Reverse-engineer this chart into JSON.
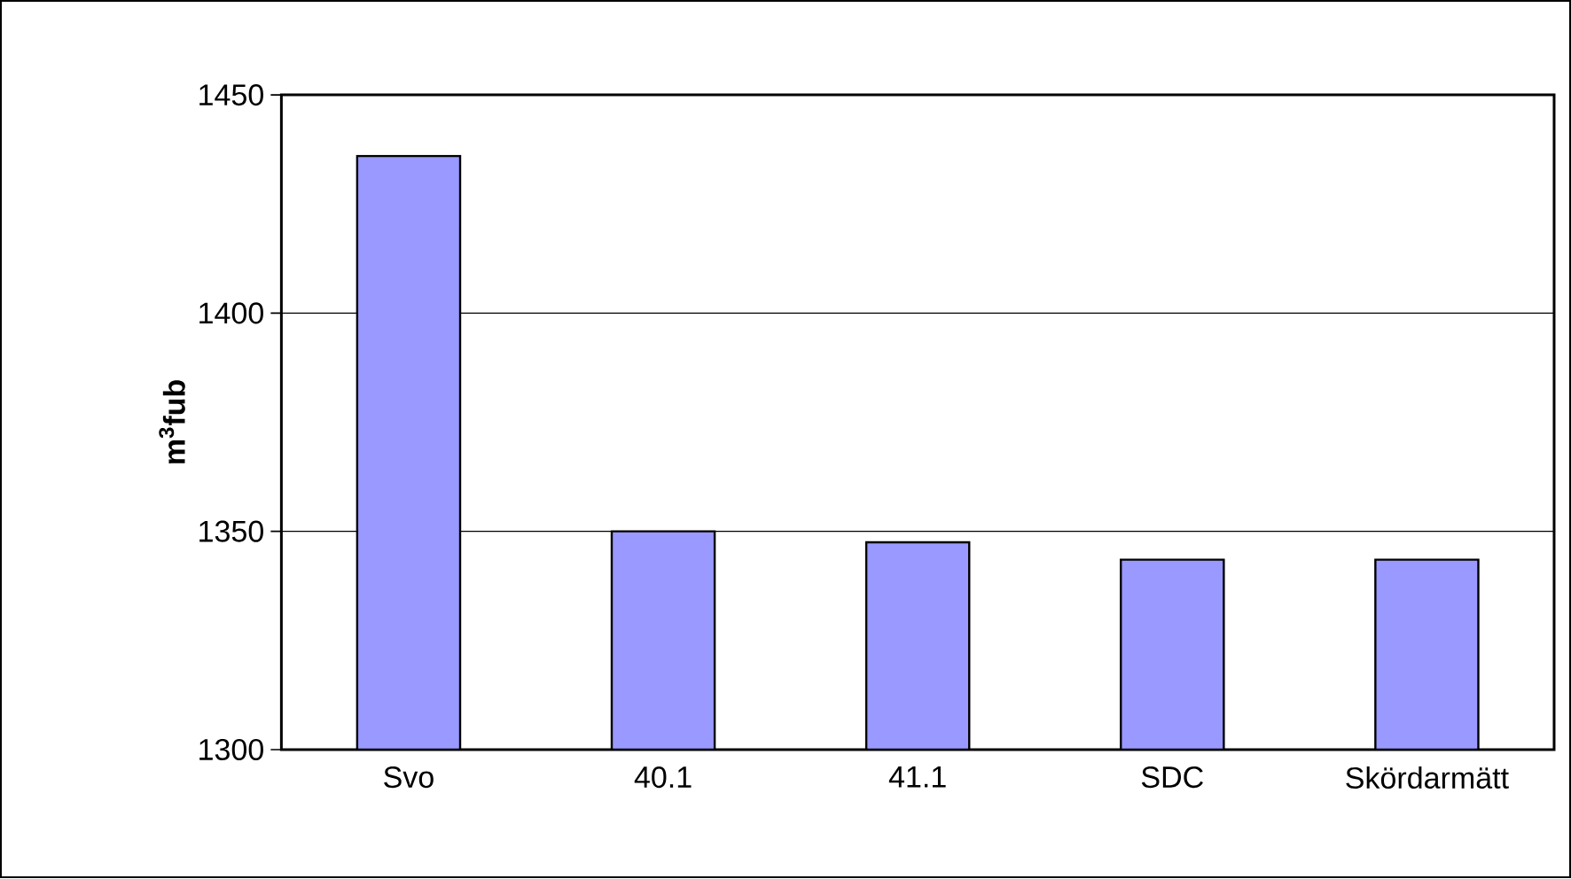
{
  "chart_data": {
    "type": "bar",
    "ylabel": "m$^{3}$fub",
    "categories": [
      "Svo",
      "40.1",
      "41.1",
      "SDC",
      "Skördarmätt"
    ],
    "values": [
      1436,
      1350,
      1347.5,
      1343.5,
      1343.5
    ],
    "color": "#9999ff",
    "ylim": [
      1300,
      1450
    ],
    "yticks": [
      1300,
      1350,
      1400,
      1450
    ],
    "grid": "y"
  }
}
